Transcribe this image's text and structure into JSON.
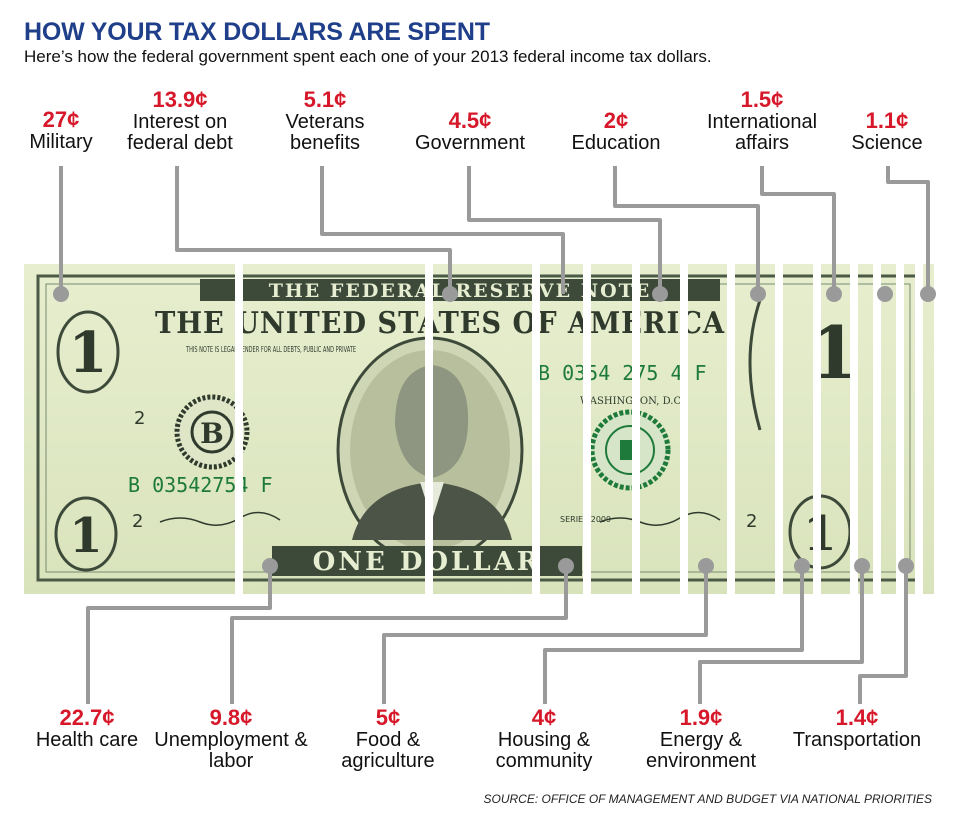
{
  "header": {
    "title": "HOW YOUR TAX DOLLARS ARE SPENT",
    "subtitle": "Here’s how the federal government spent each one of your 2013 federal income tax dollars."
  },
  "colors": {
    "title_blue": "#1f3f8a",
    "amount_red": "#d6182a",
    "connector_gray": "#9a9a9a",
    "bill_green": "#dfe9c3"
  },
  "top_categories": [
    {
      "amount": "27¢",
      "label": "Military"
    },
    {
      "amount": "13.9¢",
      "label": "Interest on federal debt"
    },
    {
      "amount": "5.1¢",
      "label": "Veterans benefits"
    },
    {
      "amount": "4.5¢",
      "label": "Government"
    },
    {
      "amount": "2¢",
      "label": "Education"
    },
    {
      "amount": "1.5¢",
      "label": "International affairs"
    },
    {
      "amount": "1.1¢",
      "label": "Science"
    }
  ],
  "bottom_categories": [
    {
      "amount": "22.7¢",
      "label": "Health care"
    },
    {
      "amount": "9.8¢",
      "label": "Unemployment & labor"
    },
    {
      "amount": "5¢",
      "label": "Food & agriculture"
    },
    {
      "amount": "4¢",
      "label": "Housing & community"
    },
    {
      "amount": "1.9¢",
      "label": "Energy & environment"
    },
    {
      "amount": "1.4¢",
      "label": "Transportation"
    }
  ],
  "bill": {
    "top_border": "THE FEDERAL RESERVE NOTE",
    "country": "THE UNITED STATES OF AMERICA",
    "legal_tender": "THIS NOTE IS LEGAL TENDER FOR ALL DEBTS, PUBLIC AND PRIVATE",
    "serial": "B 03542754 F",
    "serial_right": "B 0354 275 4 F",
    "city": "WASHINGTON, D.C.",
    "denomination": "ONE DOLLAR",
    "series": "SERIES 2009",
    "seal_letter": "B",
    "numeral": "1",
    "small_num": "2"
  },
  "source": "SOURCE: OFFICE OF MANAGEMENT AND BUDGET VIA NATIONAL PRIORITIES"
}
